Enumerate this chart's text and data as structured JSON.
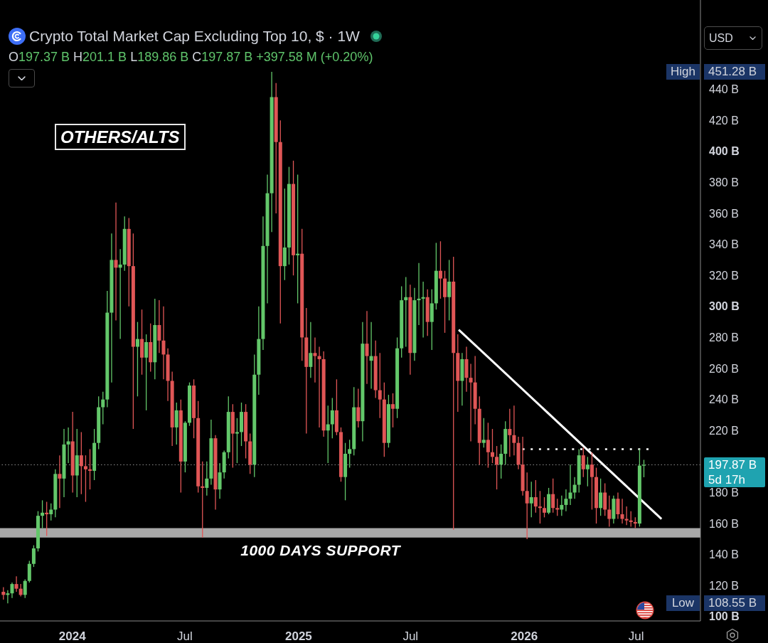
{
  "chart_data": {
    "type": "candlestick",
    "title": "Crypto Total Market Cap Excluding Top 10, $ · 1W",
    "subtitle": "O197.37 B H201.1 B L189.86 B C197.87 B +397.58 M (+0.20%)",
    "ylabel": "USD",
    "annotations": [
      "OTHERS/ALTS",
      "High",
      "451.28 B",
      "Low",
      "108.55 B",
      "5d 17h"
    ],
    "xlim": [
      "2023-09-06",
      "2026-10-13"
    ],
    "ylim": [
      97.2,
      497.6
    ],
    "xticks": [
      {
        "value": "2024-01-01",
        "label": "2024"
      },
      {
        "value": "2024-07-01",
        "label": "Jul"
      },
      {
        "value": "2025-01-01",
        "label": "2025"
      },
      {
        "value": "2025-07-01",
        "label": "Jul"
      },
      {
        "value": "2026-01-01",
        "label": "2026"
      },
      {
        "value": "2026-07-01",
        "label": "Jul"
      }
    ],
    "yticks": [
      {
        "value": 100,
        "label": "100 B"
      },
      {
        "value": 120,
        "label": "120 B"
      },
      {
        "value": 140,
        "label": "140 B"
      },
      {
        "value": 160,
        "label": "160 B"
      },
      {
        "value": 180,
        "label": "180 B"
      },
      {
        "value": 220,
        "label": "220 B"
      },
      {
        "value": 240,
        "label": "240 B"
      },
      {
        "value": 260,
        "label": "260 B"
      },
      {
        "value": 280,
        "label": "280 B"
      },
      {
        "value": 300,
        "label": "300 B"
      },
      {
        "value": 320,
        "label": "320 B"
      },
      {
        "value": 340,
        "label": "340 B"
      },
      {
        "value": 360,
        "label": "360 B"
      },
      {
        "value": 380,
        "label": "380 B"
      },
      {
        "value": 400,
        "label": "400 B"
      },
      {
        "value": 420,
        "label": "420 B"
      },
      {
        "value": 440,
        "label": "440 B"
      }
    ],
    "x": [
      "2023-09-11",
      "2023-09-18",
      "2023-09-25",
      "2023-10-02",
      "2023-10-09",
      "2023-10-16",
      "2023-10-23",
      "2023-10-30",
      "2023-11-06",
      "2023-11-13",
      "2023-11-20",
      "2023-11-27",
      "2023-12-04",
      "2023-12-11",
      "2023-12-18",
      "2023-12-25",
      "2024-01-01",
      "2024-01-08",
      "2024-01-15",
      "2024-01-22",
      "2024-01-29",
      "2024-02-05",
      "2024-02-12",
      "2024-02-19",
      "2024-02-26",
      "2024-03-04",
      "2024-03-11",
      "2024-03-18",
      "2024-03-25",
      "2024-04-01",
      "2024-04-08",
      "2024-04-15",
      "2024-04-22",
      "2024-04-29",
      "2024-05-06",
      "2024-05-13",
      "2024-05-20",
      "2024-05-27",
      "2024-06-03",
      "2024-06-10",
      "2024-06-17",
      "2024-06-24",
      "2024-07-01",
      "2024-07-08",
      "2024-07-15",
      "2024-07-22",
      "2024-07-29",
      "2024-08-05",
      "2024-08-12",
      "2024-08-19",
      "2024-08-26",
      "2024-09-02",
      "2024-09-09",
      "2024-09-16",
      "2024-09-23",
      "2024-09-30",
      "2024-10-07",
      "2024-10-14",
      "2024-10-21",
      "2024-10-28",
      "2024-11-04",
      "2024-11-11",
      "2024-11-18",
      "2024-11-25",
      "2024-12-02",
      "2024-12-09",
      "2024-12-16",
      "2024-12-23",
      "2024-12-30",
      "2025-01-06",
      "2025-01-13",
      "2025-01-20",
      "2025-01-27",
      "2025-02-03",
      "2025-02-10",
      "2025-02-17",
      "2025-02-24",
      "2025-03-03",
      "2025-03-10",
      "2025-03-17",
      "2025-03-24",
      "2025-03-31",
      "2025-04-07",
      "2025-04-14",
      "2025-04-21",
      "2025-04-28",
      "2025-05-05",
      "2025-05-12",
      "2025-05-19",
      "2025-05-26",
      "2025-06-02",
      "2025-06-09",
      "2025-06-16",
      "2025-06-23",
      "2025-06-30",
      "2025-07-07",
      "2025-07-14",
      "2025-07-21",
      "2025-07-28",
      "2025-08-04",
      "2025-08-11",
      "2025-08-18",
      "2025-08-25",
      "2025-09-01",
      "2025-09-08",
      "2025-09-15",
      "2025-09-22",
      "2025-09-29",
      "2025-10-06",
      "2025-10-13",
      "2025-10-20",
      "2025-10-27",
      "2025-11-03",
      "2025-11-10",
      "2025-11-17",
      "2025-11-24",
      "2025-12-01",
      "2025-12-08",
      "2025-12-15",
      "2025-12-22",
      "2025-12-29",
      "2026-01-05",
      "2026-01-12",
      "2026-01-19",
      "2026-01-26",
      "2026-02-02",
      "2026-02-09",
      "2026-02-16",
      "2026-02-23",
      "2026-03-02",
      "2026-03-09",
      "2026-03-16",
      "2026-03-23",
      "2026-03-30",
      "2026-04-06",
      "2026-04-13",
      "2026-04-20",
      "2026-04-27",
      "2026-05-04",
      "2026-05-11",
      "2026-05-18",
      "2026-05-25",
      "2026-06-01",
      "2026-06-08",
      "2026-06-15",
      "2026-06-22",
      "2026-06-29",
      "2026-07-06",
      "2026-07-13"
    ],
    "ohlc": [
      [
        116,
        119,
        111,
        114
      ],
      [
        114,
        117,
        108.55,
        115
      ],
      [
        115,
        122,
        112,
        121
      ],
      [
        121,
        126,
        116,
        118
      ],
      [
        118,
        121,
        113,
        114
      ],
      [
        114,
        124,
        112,
        123
      ],
      [
        123,
        136,
        122,
        134
      ],
      [
        134,
        146,
        132,
        144
      ],
      [
        144,
        168,
        142,
        165
      ],
      [
        165,
        175,
        157,
        167
      ],
      [
        167,
        174,
        152,
        166
      ],
      [
        166,
        173,
        162,
        169
      ],
      [
        169,
        195,
        164,
        192
      ],
      [
        192,
        204,
        170,
        189
      ],
      [
        189,
        221,
        177,
        211
      ],
      [
        211,
        222,
        199,
        213
      ],
      [
        213,
        232,
        180,
        191
      ],
      [
        191,
        221,
        177,
        204
      ],
      [
        204,
        219,
        179,
        197
      ],
      [
        197,
        204,
        174,
        195
      ],
      [
        195,
        208,
        182,
        194
      ],
      [
        194,
        221,
        188,
        212
      ],
      [
        212,
        242,
        208,
        235
      ],
      [
        235,
        245,
        224,
        240
      ],
      [
        240,
        310,
        235,
        296
      ],
      [
        296,
        347,
        251,
        330
      ],
      [
        330,
        367,
        291,
        325
      ],
      [
        325,
        337,
        279,
        327
      ],
      [
        327,
        358,
        323,
        350
      ],
      [
        350,
        357,
        300,
        326
      ],
      [
        326,
        347,
        221,
        274
      ],
      [
        274,
        290,
        242,
        279
      ],
      [
        279,
        298,
        256,
        267
      ],
      [
        267,
        282,
        233,
        277
      ],
      [
        277,
        289,
        258,
        264
      ],
      [
        264,
        305,
        253,
        288
      ],
      [
        288,
        304,
        270,
        278
      ],
      [
        278,
        300,
        253,
        269
      ],
      [
        269,
        273,
        239,
        252
      ],
      [
        252,
        258,
        210,
        222
      ],
      [
        222,
        238,
        211,
        233
      ],
      [
        233,
        240,
        180,
        200
      ],
      [
        200,
        226,
        193,
        225
      ],
      [
        225,
        251,
        223,
        249
      ],
      [
        249,
        253,
        215,
        228
      ],
      [
        228,
        239,
        180,
        184
      ],
      [
        184,
        200,
        151,
        183
      ],
      [
        183,
        200,
        178,
        189
      ],
      [
        189,
        227,
        185,
        215
      ],
      [
        215,
        217,
        169,
        182
      ],
      [
        182,
        199,
        176,
        193
      ],
      [
        193,
        207,
        189,
        206
      ],
      [
        206,
        242,
        202,
        232
      ],
      [
        232,
        237,
        196,
        218
      ],
      [
        218,
        228,
        199,
        219
      ],
      [
        219,
        238,
        210,
        232
      ],
      [
        232,
        237,
        202,
        213
      ],
      [
        213,
        218,
        192,
        198
      ],
      [
        198,
        269,
        190,
        256
      ],
      [
        256,
        300,
        243,
        279
      ],
      [
        279,
        358,
        272,
        339
      ],
      [
        339,
        385,
        302,
        373
      ],
      [
        373,
        451.28,
        348,
        435
      ],
      [
        435,
        444,
        360,
        406
      ],
      [
        406,
        420,
        289,
        326
      ],
      [
        326,
        376,
        317,
        338
      ],
      [
        338,
        390,
        327,
        379
      ],
      [
        379,
        394,
        320,
        333
      ],
      [
        333,
        385,
        302,
        334
      ],
      [
        334,
        350,
        265,
        280
      ],
      [
        280,
        299,
        218,
        261
      ],
      [
        261,
        290,
        254,
        270
      ],
      [
        270,
        280,
        251,
        268
      ],
      [
        268,
        274,
        222,
        266
      ],
      [
        266,
        271,
        216,
        220
      ],
      [
        220,
        236,
        199,
        224
      ],
      [
        224,
        241,
        215,
        233
      ],
      [
        233,
        253,
        217,
        219
      ],
      [
        219,
        222,
        187,
        190
      ],
      [
        190,
        212,
        175,
        205
      ],
      [
        205,
        214,
        196,
        208
      ],
      [
        208,
        248,
        204,
        235
      ],
      [
        235,
        247,
        222,
        226
      ],
      [
        226,
        290,
        213,
        276
      ],
      [
        276,
        297,
        250,
        268
      ],
      [
        265,
        290,
        247,
        268
      ],
      [
        268,
        278,
        241,
        246
      ],
      [
        246,
        270,
        228,
        240
      ],
      [
        240,
        251,
        203,
        212
      ],
      [
        212,
        243,
        209,
        237
      ],
      [
        237,
        244,
        222,
        234
      ],
      [
        234,
        280,
        228,
        273
      ],
      [
        273,
        313,
        267,
        304
      ],
      [
        304,
        319,
        274,
        306
      ],
      [
        306,
        314,
        256,
        270
      ],
      [
        270,
        312,
        265,
        304
      ],
      [
        304,
        328,
        288,
        305
      ],
      [
        305,
        316,
        280,
        306
      ],
      [
        306,
        311,
        281,
        290
      ],
      [
        290,
        311,
        272,
        302
      ],
      [
        302,
        341,
        298,
        323
      ],
      [
        323,
        342,
        305,
        318
      ],
      [
        318,
        323,
        283,
        306
      ],
      [
        306,
        330,
        291,
        316
      ],
      [
        316,
        332,
        156,
        270
      ],
      [
        270,
        282,
        232,
        252
      ],
      [
        252,
        270,
        236,
        266
      ],
      [
        266,
        274,
        245,
        254
      ],
      [
        254,
        263,
        213,
        251
      ],
      [
        251,
        268,
        224,
        234
      ],
      [
        234,
        242,
        198,
        212
      ],
      [
        212,
        228,
        209,
        214
      ],
      [
        214,
        225,
        196,
        206
      ],
      [
        206,
        221,
        199,
        203
      ],
      [
        203,
        210,
        182,
        198
      ],
      [
        198,
        211,
        189,
        205
      ],
      [
        205,
        226,
        198,
        221
      ],
      [
        221,
        234,
        203,
        217
      ],
      [
        217,
        236,
        204,
        212
      ],
      [
        212,
        216,
        195,
        198
      ],
      [
        198,
        216,
        178,
        181
      ],
      [
        181,
        193,
        150,
        173
      ],
      [
        173,
        187,
        164,
        177
      ],
      [
        177,
        188,
        167,
        171
      ],
      [
        171,
        181,
        160,
        170
      ],
      [
        170,
        177,
        164,
        167
      ],
      [
        167,
        183,
        166,
        179
      ],
      [
        179,
        189,
        167,
        170
      ],
      [
        170,
        176,
        165,
        169
      ],
      [
        169,
        178,
        165,
        172
      ],
      [
        172,
        182,
        168,
        176
      ],
      [
        176,
        198,
        172,
        180
      ],
      [
        180,
        190,
        176,
        185
      ],
      [
        185,
        208,
        180,
        204
      ],
      [
        204,
        209,
        190,
        195
      ],
      [
        195,
        203,
        184,
        198
      ],
      [
        198,
        206,
        169,
        190
      ],
      [
        190,
        196,
        160,
        170
      ],
      [
        170,
        189,
        165,
        180
      ],
      [
        180,
        186,
        165,
        169
      ],
      [
        169,
        178,
        158,
        163
      ],
      [
        163,
        178,
        160,
        176
      ],
      [
        176,
        180,
        163,
        166
      ],
      [
        166,
        176,
        160,
        163
      ],
      [
        163,
        171,
        159,
        162
      ],
      [
        162,
        168,
        158,
        161
      ],
      [
        161,
        164,
        157,
        160
      ],
      [
        160,
        208,
        158,
        197.37
      ],
      [
        197.37,
        201.1,
        189.86,
        197.87
      ]
    ],
    "colors": [
      "#e05656",
      "#63c76a",
      "#63c76a",
      "#e05656",
      "#e05656",
      "#63c76a",
      "#63c76a",
      "#63c76a",
      "#63c76a",
      "#63c76a",
      "#e05656",
      "#63c76a",
      "#63c76a",
      "#e05656",
      "#63c76a",
      "#63c76a",
      "#e05656",
      "#63c76a",
      "#e05656",
      "#e05656",
      "#e05656",
      "#63c76a",
      "#63c76a",
      "#63c76a",
      "#63c76a",
      "#63c76a",
      "#e05656",
      "#63c76a",
      "#63c76a",
      "#e05656",
      "#e05656",
      "#63c76a",
      "#e05656",
      "#63c76a",
      "#e05656",
      "#63c76a",
      "#e05656",
      "#e05656",
      "#e05656",
      "#e05656",
      "#63c76a",
      "#e05656",
      "#63c76a",
      "#63c76a",
      "#e05656",
      "#e05656",
      "#e05656",
      "#63c76a",
      "#63c76a",
      "#e05656",
      "#63c76a",
      "#63c76a",
      "#63c76a",
      "#e05656",
      "#63c76a",
      "#63c76a",
      "#e05656",
      "#e05656",
      "#63c76a",
      "#63c76a",
      "#63c76a",
      "#63c76a",
      "#63c76a",
      "#e05656",
      "#e05656",
      "#63c76a",
      "#63c76a",
      "#e05656",
      "#63c76a",
      "#e05656",
      "#e05656",
      "#63c76a",
      "#e05656",
      "#e05656",
      "#e05656",
      "#63c76a",
      "#63c76a",
      "#e05656",
      "#e05656",
      "#63c76a",
      "#63c76a",
      "#63c76a",
      "#e05656",
      "#63c76a",
      "#e05656",
      "#63c76a",
      "#e05656",
      "#e05656",
      "#e05656",
      "#63c76a",
      "#e05656",
      "#63c76a",
      "#63c76a",
      "#63c76a",
      "#e05656",
      "#63c76a",
      "#63c76a",
      "#63c76a",
      "#e05656",
      "#63c76a",
      "#63c76a",
      "#e05656",
      "#e05656",
      "#63c76a",
      "#e05656",
      "#e05656",
      "#63c76a",
      "#e05656",
      "#e05656",
      "#e05656",
      "#e05656",
      "#63c76a",
      "#e05656",
      "#e05656",
      "#e05656",
      "#63c76a",
      "#63c76a",
      "#e05656",
      "#e05656",
      "#e05656",
      "#e05656",
      "#e05656",
      "#63c76a",
      "#e05656",
      "#e05656",
      "#e05656",
      "#63c76a",
      "#e05656",
      "#e05656",
      "#63c76a",
      "#63c76a",
      "#63c76a",
      "#63c76a",
      "#63c76a",
      "#e05656",
      "#63c76a",
      "#e05656",
      "#e05656",
      "#63c76a",
      "#e05656",
      "#e05656",
      "#63c76a",
      "#e05656",
      "#e05656",
      "#e05656",
      "#e05656",
      "#e05656",
      "#63c76a",
      "#63c76a"
    ],
    "series": [
      {
        "type": "line",
        "x": [
          "2025-09-17",
          "2026-08-11"
        ],
        "values": [
          285,
          163
        ],
        "color": "#ffffff"
      },
      {
        "type": "line",
        "x": [
          "2025-12-29",
          "2026-07-21"
        ],
        "values": [
          208,
          208
        ],
        "color": "#ffffff",
        "line_style": "dotted"
      }
    ],
    "ref_lines": [
      {
        "axis": "y",
        "value": 197.87,
        "label": "197.87 B",
        "color": "#8c8c8c",
        "line_style": "dotted"
      }
    ],
    "bands": [
      {
        "axis": "y",
        "from": 151,
        "to": 157,
        "label": "1000 DAYS SUPPORT",
        "color": "#a8a8a8"
      }
    ]
  }
}
